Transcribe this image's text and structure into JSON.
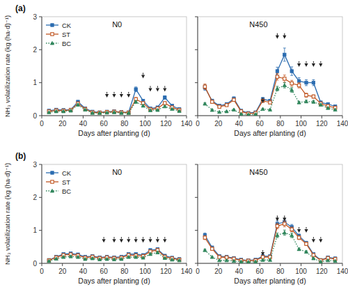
{
  "chart_data": [
    {
      "type": "line",
      "title": "(a)",
      "x_label": "Days after planting (d)",
      "y_label": "NH₃ volatilization rate (kg (ha·d)⁻¹)",
      "x": [
        7,
        14,
        21,
        28,
        35,
        42,
        49,
        56,
        63,
        70,
        77,
        84,
        91,
        98,
        105,
        112,
        119,
        126,
        133
      ],
      "series": [
        {
          "name": "CK",
          "marker": "square",
          "line_style": "solid",
          "values": [
            0.15,
            0.18,
            0.17,
            0.18,
            0.42,
            0.22,
            0.12,
            0.1,
            0.12,
            0.13,
            0.11,
            0.1,
            0.8,
            0.45,
            0.22,
            0.25,
            0.55,
            0.3,
            0.2
          ],
          "errors": [
            0.02,
            0.02,
            0.02,
            0.02,
            0.04,
            0.02,
            0.01,
            0.01,
            0.01,
            0.01,
            0.01,
            0.01,
            0.07,
            0.04,
            0.02,
            0.02,
            0.05,
            0.03,
            0.02
          ]
        },
        {
          "name": "ST",
          "marker": "open-square",
          "line_style": "solid",
          "values": [
            0.13,
            0.16,
            0.15,
            0.17,
            0.37,
            0.2,
            0.1,
            0.09,
            0.11,
            0.12,
            0.1,
            0.09,
            0.5,
            0.38,
            0.19,
            0.22,
            0.38,
            0.25,
            0.17
          ],
          "errors": [
            0.01,
            0.02,
            0.02,
            0.02,
            0.03,
            0.02,
            0.01,
            0.01,
            0.01,
            0.01,
            0.01,
            0.01,
            0.05,
            0.03,
            0.02,
            0.02,
            0.03,
            0.02,
            0.01
          ]
        },
        {
          "name": "BC",
          "marker": "triangle",
          "line_style": "dotted",
          "values": [
            0.1,
            0.13,
            0.13,
            0.15,
            0.33,
            0.18,
            0.08,
            0.08,
            0.09,
            0.1,
            0.08,
            0.08,
            0.42,
            0.3,
            0.16,
            0.17,
            0.28,
            0.2,
            0.14
          ],
          "errors": [
            0.01,
            0.01,
            0.01,
            0.01,
            0.03,
            0.01,
            0.01,
            0.01,
            0.01,
            0.01,
            0.01,
            0.01,
            0.04,
            0.03,
            0.01,
            0.01,
            0.02,
            0.01,
            0.01
          ]
        }
      ],
      "annotations": [
        {
          "text": "N0"
        },
        {
          "x": 63,
          "y_top": 0.72,
          "y_bot": 0.55,
          "line_style": "dashed"
        },
        {
          "x": 70,
          "y_top": 0.72,
          "y_bot": 0.55,
          "line_style": "dashed"
        },
        {
          "x": 77,
          "y_top": 0.72,
          "y_bot": 0.55,
          "line_style": "dashed"
        },
        {
          "x": 84,
          "y_top": 0.72,
          "y_bot": 0.55,
          "line_style": "dashed"
        },
        {
          "x": 98,
          "y_top": 1.3,
          "y_bot": 1.13,
          "line_style": "dashed"
        },
        {
          "x": 105,
          "y_top": 0.9,
          "y_bot": 0.73,
          "line_style": "dashed"
        },
        {
          "x": 112,
          "y_top": 0.9,
          "y_bot": 0.73,
          "line_style": "dashed"
        },
        {
          "x": 119,
          "y_top": 0.9,
          "y_bot": 0.73,
          "line_style": "dashed"
        }
      ],
      "xlim": [
        0,
        140
      ],
      "xticks": [
        0,
        20,
        40,
        60,
        80,
        100,
        120,
        140
      ],
      "ylim": [
        0,
        3
      ],
      "yticks": [
        0,
        1,
        2,
        3
      ],
      "grid": false,
      "legend": "upper left"
    },
    {
      "type": "line",
      "x_label": "Days after planting (d)",
      "x": [
        7,
        14,
        21,
        28,
        35,
        42,
        49,
        56,
        63,
        70,
        77,
        84,
        91,
        98,
        105,
        112,
        119,
        126,
        133
      ],
      "series": [
        {
          "name": "CK",
          "marker": "square",
          "line_style": "solid",
          "values": [
            0.85,
            0.45,
            0.3,
            0.35,
            0.52,
            0.15,
            0.08,
            0.1,
            0.5,
            0.45,
            1.35,
            1.85,
            1.35,
            1.05,
            1.0,
            1.0,
            0.4,
            0.35,
            0.28
          ],
          "errors": [
            0.08,
            0.05,
            0.03,
            0.03,
            0.05,
            0.02,
            0.01,
            0.01,
            0.05,
            0.04,
            0.12,
            0.2,
            0.13,
            0.1,
            0.09,
            0.09,
            0.04,
            0.03,
            0.02
          ]
        },
        {
          "name": "ST",
          "marker": "open-square",
          "line_style": "solid",
          "values": [
            0.88,
            0.42,
            0.27,
            0.32,
            0.48,
            0.13,
            0.06,
            0.08,
            0.45,
            0.4,
            1.18,
            1.12,
            0.98,
            0.92,
            0.62,
            0.58,
            0.37,
            0.29,
            0.24
          ],
          "errors": [
            0.08,
            0.04,
            0.02,
            0.03,
            0.04,
            0.01,
            0.01,
            0.01,
            0.04,
            0.04,
            0.1,
            0.11,
            0.09,
            0.08,
            0.06,
            0.05,
            0.03,
            0.02,
            0.02
          ]
        },
        {
          "name": "BC",
          "marker": "triangle",
          "line_style": "dotted",
          "values": [
            0.36,
            0.17,
            0.11,
            0.13,
            0.18,
            0.05,
            0.03,
            0.04,
            0.2,
            0.18,
            0.82,
            0.92,
            0.78,
            0.4,
            0.43,
            0.42,
            0.33,
            0.23,
            0.18
          ],
          "errors": [
            0.03,
            0.02,
            0.01,
            0.01,
            0.02,
            0.01,
            0.01,
            0.01,
            0.02,
            0.02,
            0.07,
            0.08,
            0.07,
            0.03,
            0.04,
            0.04,
            0.03,
            0.02,
            0.01
          ]
        }
      ],
      "annotations": [
        {
          "text": "N450"
        },
        {
          "x": 63,
          "y_top": 0.55,
          "y_bot": 0.38,
          "line_style": "dashed"
        },
        {
          "x": 98,
          "y_top": 1.65,
          "y_bot": 1.48,
          "line_style": "dashed"
        },
        {
          "x": 105,
          "y_top": 1.65,
          "y_bot": 1.48,
          "line_style": "dashed"
        },
        {
          "x": 112,
          "y_top": 1.65,
          "y_bot": 1.48,
          "line_style": "dashed"
        },
        {
          "x": 119,
          "y_top": 1.65,
          "y_bot": 1.48,
          "line_style": "dashed"
        },
        {
          "x": 77,
          "y_top": 2.5,
          "y_bot": 2.33,
          "line_style": "solid"
        },
        {
          "x": 84,
          "y_top": 2.5,
          "y_bot": 2.33,
          "line_style": "solid"
        }
      ],
      "xlim": [
        0,
        140
      ],
      "xticks": [
        0,
        20,
        40,
        60,
        80,
        100,
        120,
        140
      ],
      "ylim": [
        0,
        3
      ],
      "yticks": [
        0,
        1,
        2,
        3
      ],
      "grid": false,
      "tick_labels": "x"
    },
    {
      "type": "line",
      "title": "(b)",
      "x_label": "Days after planting (d)",
      "y_label": "NH₃ volatilization rate (kg (ha·d)⁻¹)",
      "x": [
        7,
        14,
        21,
        28,
        35,
        42,
        49,
        56,
        63,
        70,
        77,
        84,
        91,
        98,
        105,
        112,
        119,
        126,
        133
      ],
      "series": [
        {
          "name": "CK",
          "marker": "square",
          "line_style": "solid",
          "values": [
            0.1,
            0.2,
            0.28,
            0.3,
            0.27,
            0.2,
            0.22,
            0.18,
            0.2,
            0.18,
            0.2,
            0.28,
            0.28,
            0.25,
            0.4,
            0.43,
            0.23,
            0.17,
            0.13
          ],
          "errors": [
            0.01,
            0.02,
            0.03,
            0.03,
            0.03,
            0.02,
            0.02,
            0.02,
            0.02,
            0.02,
            0.02,
            0.03,
            0.03,
            0.02,
            0.04,
            0.04,
            0.02,
            0.02,
            0.01
          ]
        },
        {
          "name": "ST",
          "marker": "open-square",
          "line_style": "solid",
          "values": [
            0.09,
            0.18,
            0.25,
            0.27,
            0.24,
            0.17,
            0.2,
            0.16,
            0.18,
            0.16,
            0.17,
            0.25,
            0.24,
            0.22,
            0.36,
            0.4,
            0.2,
            0.15,
            0.11
          ],
          "errors": [
            0.01,
            0.02,
            0.02,
            0.02,
            0.02,
            0.02,
            0.02,
            0.01,
            0.01,
            0.01,
            0.01,
            0.02,
            0.02,
            0.02,
            0.03,
            0.04,
            0.02,
            0.01,
            0.01
          ]
        },
        {
          "name": "BC",
          "marker": "triangle",
          "line_style": "dotted",
          "values": [
            0.07,
            0.14,
            0.19,
            0.21,
            0.19,
            0.13,
            0.15,
            0.12,
            0.13,
            0.12,
            0.13,
            0.19,
            0.19,
            0.17,
            0.28,
            0.33,
            0.16,
            0.11,
            0.09
          ],
          "errors": [
            0.01,
            0.01,
            0.02,
            0.02,
            0.02,
            0.01,
            0.01,
            0.01,
            0.01,
            0.01,
            0.01,
            0.02,
            0.02,
            0.01,
            0.03,
            0.03,
            0.01,
            0.01,
            0.01
          ]
        }
      ],
      "annotations": [
        {
          "text": "N0"
        },
        {
          "x": 60,
          "y_top": 0.8,
          "y_bot": 0.63,
          "line_style": "dashed"
        },
        {
          "x": 70,
          "y_top": 0.8,
          "y_bot": 0.63,
          "line_style": "dashed"
        },
        {
          "x": 77,
          "y_top": 0.8,
          "y_bot": 0.63,
          "line_style": "dashed"
        },
        {
          "x": 84,
          "y_top": 0.8,
          "y_bot": 0.63,
          "line_style": "dashed"
        },
        {
          "x": 91,
          "y_top": 0.8,
          "y_bot": 0.63,
          "line_style": "dashed"
        },
        {
          "x": 98,
          "y_top": 0.8,
          "y_bot": 0.63,
          "line_style": "dashed"
        },
        {
          "x": 105,
          "y_top": 0.8,
          "y_bot": 0.63,
          "line_style": "dashed"
        },
        {
          "x": 112,
          "y_top": 0.8,
          "y_bot": 0.63,
          "line_style": "dashed"
        },
        {
          "x": 119,
          "y_top": 0.8,
          "y_bot": 0.63,
          "line_style": "dashed"
        }
      ],
      "xlim": [
        0,
        140
      ],
      "xticks": [
        0,
        20,
        40,
        60,
        80,
        100,
        120,
        140
      ],
      "ylim": [
        0,
        3
      ],
      "yticks": [
        0,
        1,
        2,
        3
      ],
      "grid": false,
      "legend": "upper left"
    },
    {
      "type": "line",
      "x_label": "Days after planting (d)",
      "x": [
        7,
        14,
        21,
        28,
        35,
        42,
        49,
        56,
        63,
        70,
        77,
        84,
        91,
        98,
        105,
        112,
        119,
        126,
        133
      ],
      "series": [
        {
          "name": "CK",
          "marker": "square",
          "line_style": "solid",
          "values": [
            0.85,
            0.48,
            0.22,
            0.2,
            0.16,
            0.11,
            0.09,
            0.11,
            0.22,
            0.22,
            1.2,
            1.25,
            1.1,
            0.83,
            0.62,
            0.28,
            0.1,
            0.18,
            0.15
          ],
          "errors": [
            0.07,
            0.04,
            0.02,
            0.02,
            0.01,
            0.01,
            0.01,
            0.01,
            0.02,
            0.02,
            0.09,
            0.09,
            0.08,
            0.06,
            0.05,
            0.02,
            0.01,
            0.02,
            0.01
          ]
        },
        {
          "name": "ST",
          "marker": "open-square",
          "line_style": "solid",
          "values": [
            0.78,
            0.44,
            0.19,
            0.18,
            0.14,
            0.09,
            0.08,
            0.09,
            0.19,
            0.19,
            1.13,
            1.2,
            1.03,
            0.78,
            0.59,
            0.25,
            0.09,
            0.16,
            0.13
          ],
          "errors": [
            0.06,
            0.04,
            0.02,
            0.02,
            0.01,
            0.01,
            0.01,
            0.01,
            0.02,
            0.02,
            0.08,
            0.09,
            0.07,
            0.06,
            0.05,
            0.02,
            0.01,
            0.01,
            0.01
          ]
        },
        {
          "name": "BC",
          "marker": "triangle",
          "line_style": "dotted",
          "values": [
            0.4,
            0.19,
            0.09,
            0.09,
            0.07,
            0.05,
            0.04,
            0.05,
            0.1,
            0.1,
            0.85,
            0.93,
            0.85,
            0.43,
            0.35,
            0.15,
            0.05,
            0.09,
            0.07
          ],
          "errors": [
            0.03,
            0.02,
            0.01,
            0.01,
            0.01,
            0.01,
            0.01,
            0.01,
            0.01,
            0.01,
            0.07,
            0.08,
            0.07,
            0.04,
            0.03,
            0.01,
            0.01,
            0.01,
            0.01
          ]
        }
      ],
      "annotations": [
        {
          "text": "N450"
        },
        {
          "x": 63,
          "y_top": 0.4,
          "y_bot": 0.23,
          "line_style": "dashed"
        },
        {
          "x": 98,
          "y_top": 1.1,
          "y_bot": 0.93,
          "line_style": "dashed"
        },
        {
          "x": 105,
          "y_top": 1.1,
          "y_bot": 0.93,
          "line_style": "dashed"
        },
        {
          "x": 112,
          "y_top": 0.8,
          "y_bot": 0.63,
          "line_style": "dashed"
        },
        {
          "x": 119,
          "y_top": 0.8,
          "y_bot": 0.63,
          "line_style": "dashed"
        },
        {
          "x": 77,
          "y_top": 1.45,
          "y_bot": 1.28,
          "line_style": "solid"
        },
        {
          "x": 84,
          "y_top": 1.45,
          "y_bot": 1.28,
          "line_style": "solid"
        }
      ],
      "xlim": [
        0,
        140
      ],
      "xticks": [
        0,
        20,
        40,
        60,
        80,
        100,
        120,
        140
      ],
      "ylim": [
        0,
        3
      ],
      "yticks": [
        0,
        1,
        2,
        3
      ],
      "grid": false,
      "tick_labels": "x"
    }
  ]
}
